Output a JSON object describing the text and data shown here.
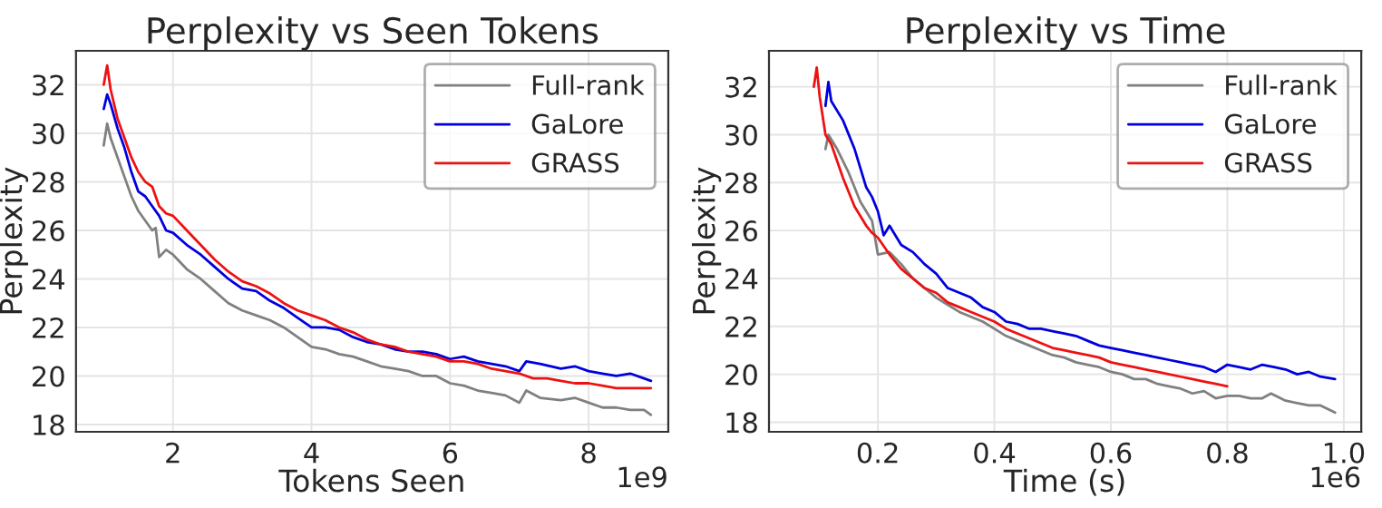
{
  "chart_data": [
    {
      "type": "line",
      "title": "Perplexity vs Seen Tokens",
      "xlabel": "Tokens Seen",
      "ylabel": "Perplexity",
      "xlim": [
        0.6,
        9.15
      ],
      "xticks": [
        2,
        4,
        6,
        8
      ],
      "ylim": [
        17.7,
        33.4
      ],
      "yticks": [
        18,
        20,
        22,
        24,
        26,
        28,
        30,
        32
      ],
      "grid": true,
      "legend": "top right",
      "annotations": [
        "1e9"
      ],
      "series": [
        {
          "name": "Full-rank",
          "color": "#808080",
          "x": [
            1.0,
            1.05,
            1.1,
            1.2,
            1.3,
            1.4,
            1.5,
            1.6,
            1.7,
            1.75,
            1.8,
            1.9,
            2.0,
            2.2,
            2.4,
            2.6,
            2.8,
            3.0,
            3.2,
            3.4,
            3.6,
            3.8,
            4.0,
            4.2,
            4.4,
            4.6,
            4.8,
            5.0,
            5.2,
            5.4,
            5.6,
            5.8,
            6.0,
            6.2,
            6.4,
            6.6,
            6.8,
            7.0,
            7.1,
            7.3,
            7.6,
            7.8,
            8.0,
            8.2,
            8.4,
            8.6,
            8.8,
            8.9
          ],
          "values": [
            29.5,
            30.4,
            29.8,
            29.0,
            28.2,
            27.4,
            26.8,
            26.4,
            26.0,
            26.1,
            24.9,
            25.2,
            25.0,
            24.4,
            24.0,
            23.5,
            23.0,
            22.7,
            22.5,
            22.3,
            22.0,
            21.6,
            21.2,
            21.1,
            20.9,
            20.8,
            20.6,
            20.4,
            20.3,
            20.2,
            20.0,
            20.0,
            19.7,
            19.6,
            19.4,
            19.3,
            19.2,
            18.9,
            19.4,
            19.1,
            19.0,
            19.1,
            18.9,
            18.7,
            18.7,
            18.6,
            18.6,
            18.4
          ]
        },
        {
          "name": "GaLore",
          "color": "#0000dd",
          "x": [
            1.0,
            1.05,
            1.1,
            1.2,
            1.3,
            1.4,
            1.5,
            1.6,
            1.7,
            1.8,
            1.9,
            2.0,
            2.2,
            2.4,
            2.6,
            2.8,
            3.0,
            3.2,
            3.4,
            3.6,
            3.8,
            4.0,
            4.2,
            4.4,
            4.6,
            4.8,
            5.0,
            5.2,
            5.4,
            5.6,
            5.8,
            6.0,
            6.2,
            6.4,
            6.6,
            6.8,
            7.0,
            7.1,
            7.3,
            7.6,
            7.8,
            8.0,
            8.2,
            8.4,
            8.6,
            8.8,
            8.9
          ],
          "values": [
            31.0,
            31.6,
            31.2,
            30.2,
            29.4,
            28.4,
            27.6,
            27.4,
            27.0,
            26.6,
            26.0,
            25.9,
            25.4,
            25.0,
            24.5,
            24.0,
            23.6,
            23.5,
            23.1,
            22.8,
            22.4,
            22.0,
            22.0,
            21.9,
            21.6,
            21.4,
            21.3,
            21.1,
            21.0,
            21.0,
            20.9,
            20.7,
            20.8,
            20.6,
            20.5,
            20.4,
            20.2,
            20.6,
            20.5,
            20.3,
            20.4,
            20.2,
            20.1,
            20.0,
            20.1,
            19.9,
            19.8
          ]
        },
        {
          "name": "GRASS",
          "color": "#ee1111",
          "x": [
            1.0,
            1.05,
            1.1,
            1.2,
            1.3,
            1.4,
            1.5,
            1.6,
            1.7,
            1.8,
            1.9,
            2.0,
            2.2,
            2.4,
            2.6,
            2.8,
            3.0,
            3.2,
            3.4,
            3.6,
            3.8,
            4.0,
            4.2,
            4.4,
            4.6,
            4.8,
            5.0,
            5.2,
            5.4,
            5.6,
            5.8,
            6.0,
            6.2,
            6.4,
            6.6,
            6.8,
            7.0,
            7.2,
            7.4,
            7.6,
            7.8,
            8.0,
            8.2,
            8.4,
            8.6,
            8.8,
            8.9
          ],
          "values": [
            32.0,
            32.8,
            31.8,
            30.6,
            29.8,
            29.0,
            28.4,
            28.0,
            27.8,
            27.0,
            26.7,
            26.6,
            26.0,
            25.4,
            24.8,
            24.3,
            23.9,
            23.7,
            23.4,
            23.0,
            22.7,
            22.5,
            22.3,
            22.0,
            21.8,
            21.5,
            21.3,
            21.2,
            21.0,
            20.9,
            20.8,
            20.6,
            20.6,
            20.5,
            20.3,
            20.2,
            20.1,
            19.9,
            19.9,
            19.8,
            19.7,
            19.7,
            19.6,
            19.5,
            19.5,
            19.5,
            19.5
          ]
        }
      ]
    },
    {
      "type": "line",
      "title": "Perplexity vs Time",
      "xlabel": "Time (s)",
      "ylabel": "Perplexity",
      "xlim": [
        0.013,
        1.03
      ],
      "xticks": [
        {
          "value": 0.2,
          "label": "0.2"
        },
        {
          "value": 0.4,
          "label": "0.4"
        },
        {
          "value": 0.6,
          "label": "0.6"
        },
        {
          "value": 0.8,
          "label": "0.8"
        },
        {
          "value": 1.0,
          "label": "1.0"
        }
      ],
      "ylim": [
        17.6,
        33.5
      ],
      "yticks": [
        18,
        20,
        22,
        24,
        26,
        28,
        30,
        32
      ],
      "grid": true,
      "legend": "top right",
      "annotations": [
        "1e6"
      ],
      "series": [
        {
          "name": "Full-rank",
          "color": "#808080",
          "x": [
            0.11,
            0.115,
            0.13,
            0.15,
            0.17,
            0.19,
            0.2,
            0.22,
            0.24,
            0.26,
            0.28,
            0.3,
            0.32,
            0.34,
            0.36,
            0.38,
            0.4,
            0.42,
            0.44,
            0.46,
            0.48,
            0.5,
            0.52,
            0.54,
            0.56,
            0.58,
            0.6,
            0.62,
            0.64,
            0.66,
            0.68,
            0.7,
            0.72,
            0.74,
            0.76,
            0.78,
            0.8,
            0.82,
            0.84,
            0.86,
            0.875,
            0.9,
            0.92,
            0.94,
            0.96,
            0.985
          ],
          "values": [
            29.4,
            30.0,
            29.4,
            28.4,
            27.2,
            26.4,
            25.0,
            25.1,
            24.6,
            24.0,
            23.6,
            23.2,
            22.9,
            22.6,
            22.4,
            22.2,
            21.9,
            21.6,
            21.4,
            21.2,
            21.0,
            20.8,
            20.7,
            20.5,
            20.4,
            20.3,
            20.1,
            20.0,
            19.8,
            19.8,
            19.6,
            19.5,
            19.4,
            19.2,
            19.3,
            19.0,
            19.1,
            19.1,
            19.0,
            19.0,
            19.2,
            18.9,
            18.8,
            18.7,
            18.7,
            18.4
          ]
        },
        {
          "name": "GaLore",
          "color": "#0000dd",
          "x": [
            0.11,
            0.115,
            0.12,
            0.14,
            0.16,
            0.18,
            0.19,
            0.2,
            0.21,
            0.22,
            0.24,
            0.26,
            0.28,
            0.3,
            0.32,
            0.34,
            0.36,
            0.38,
            0.4,
            0.42,
            0.44,
            0.46,
            0.48,
            0.5,
            0.52,
            0.54,
            0.56,
            0.58,
            0.6,
            0.62,
            0.64,
            0.66,
            0.68,
            0.7,
            0.72,
            0.74,
            0.76,
            0.78,
            0.8,
            0.82,
            0.84,
            0.86,
            0.88,
            0.9,
            0.92,
            0.94,
            0.96,
            0.985
          ],
          "values": [
            31.2,
            32.2,
            31.4,
            30.6,
            29.4,
            27.8,
            27.4,
            26.8,
            25.8,
            26.2,
            25.4,
            25.1,
            24.6,
            24.2,
            23.6,
            23.4,
            23.2,
            22.8,
            22.6,
            22.2,
            22.1,
            21.9,
            21.9,
            21.8,
            21.7,
            21.6,
            21.4,
            21.2,
            21.1,
            21.0,
            20.9,
            20.8,
            20.7,
            20.6,
            20.5,
            20.4,
            20.3,
            20.1,
            20.4,
            20.3,
            20.2,
            20.4,
            20.3,
            20.2,
            20.0,
            20.1,
            19.9,
            19.8
          ]
        },
        {
          "name": "GRASS",
          "color": "#ee1111",
          "x": [
            0.09,
            0.095,
            0.1,
            0.11,
            0.12,
            0.14,
            0.16,
            0.18,
            0.19,
            0.2,
            0.22,
            0.24,
            0.26,
            0.28,
            0.3,
            0.32,
            0.34,
            0.36,
            0.38,
            0.4,
            0.42,
            0.44,
            0.46,
            0.48,
            0.5,
            0.52,
            0.54,
            0.56,
            0.58,
            0.6,
            0.62,
            0.64,
            0.66,
            0.68,
            0.7,
            0.72,
            0.74,
            0.76,
            0.78,
            0.8
          ],
          "values": [
            32.0,
            32.8,
            31.6,
            30.0,
            29.6,
            28.2,
            27.0,
            26.2,
            25.9,
            25.7,
            25.0,
            24.4,
            24.0,
            23.6,
            23.4,
            23.0,
            22.8,
            22.6,
            22.4,
            22.2,
            21.9,
            21.7,
            21.5,
            21.3,
            21.1,
            21.0,
            20.9,
            20.8,
            20.7,
            20.5,
            20.4,
            20.3,
            20.2,
            20.1,
            20.0,
            19.9,
            19.8,
            19.7,
            19.6,
            19.5
          ]
        }
      ]
    }
  ]
}
